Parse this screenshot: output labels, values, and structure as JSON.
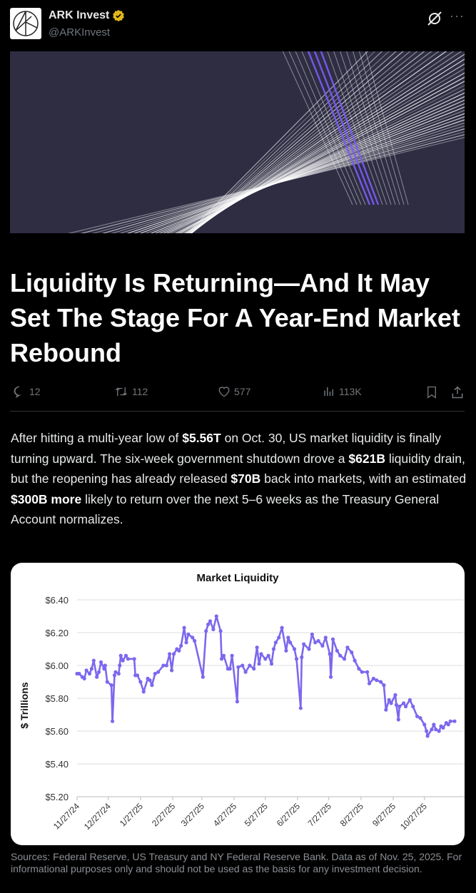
{
  "post": {
    "author": "ARK Invest",
    "handle": "@ARKInvest",
    "verified": true,
    "verified_color": "#e2b719"
  },
  "banner": {
    "background": "#2e2d42",
    "accent": "#7b5cf5"
  },
  "article": {
    "title": "Liquidity Is Returning—And It May Set The Stage For A Year-End Market Rebound",
    "body": [
      {
        "t": "After hitting a multi-year low of "
      },
      {
        "t": "$5.56T",
        "b": true
      },
      {
        "t": " on Oct. 30, US market liquidity is finally turning upward. The six-week government shutdown drove a "
      },
      {
        "t": "$621B",
        "b": true
      },
      {
        "t": " liquidity drain, but the reopening has already released "
      },
      {
        "t": "$70B",
        "b": true
      },
      {
        "t": " back into markets, with an estimated "
      },
      {
        "t": "$300B more",
        "b": true
      },
      {
        "t": " likely to return over the next 5–6 weeks as the Treasury General Account normalizes."
      }
    ]
  },
  "metrics": {
    "replies": "12",
    "reposts": "112",
    "likes": "577",
    "views": "113K"
  },
  "footer": "Sources: Federal Reserve, US Treasury and NY Federal Reserve Bank. Data as of Nov. 25, 2025. For informational purposes only and should not be used as the basis for any investment decision.",
  "chart_data": {
    "type": "line",
    "title": "Market Liquidity",
    "ylabel": "$ Trillions",
    "xlabel": "",
    "ylim": [
      5.2,
      6.4
    ],
    "yticks": [
      "$5.20",
      "$5.40",
      "$5.60",
      "$5.80",
      "$6.00",
      "$6.20",
      "$6.40"
    ],
    "xticks": [
      "11/27/24",
      "12/27/24",
      "1/27/25",
      "2/27/25",
      "3/27/25",
      "4/27/25",
      "5/27/25",
      "6/27/25",
      "7/27/25",
      "8/27/25",
      "9/27/25",
      "10/27/25"
    ],
    "grid": true,
    "line_color": "#7b68ee",
    "points": [
      [
        "2024-11-27",
        5.95
      ],
      [
        "2024-11-29",
        5.95
      ],
      [
        "2024-12-02",
        5.93
      ],
      [
        "2024-12-04",
        5.92
      ],
      [
        "2024-12-06",
        5.97
      ],
      [
        "2024-12-09",
        5.95
      ],
      [
        "2024-12-11",
        5.98
      ],
      [
        "2024-12-13",
        6.03
      ],
      [
        "2024-12-16",
        5.93
      ],
      [
        "2024-12-18",
        5.96
      ],
      [
        "2024-12-20",
        6.02
      ],
      [
        "2024-12-23",
        5.98
      ],
      [
        "2024-12-24",
        6.0
      ],
      [
        "2024-12-26",
        5.9
      ],
      [
        "2024-12-30",
        5.88
      ],
      [
        "2024-12-31",
        5.66
      ],
      [
        "2025-01-02",
        5.94
      ],
      [
        "2025-01-03",
        5.96
      ],
      [
        "2025-01-06",
        5.95
      ],
      [
        "2025-01-07",
        6.0
      ],
      [
        "2025-01-08",
        6.06
      ],
      [
        "2025-01-10",
        6.03
      ],
      [
        "2025-01-13",
        6.06
      ],
      [
        "2025-01-15",
        6.04
      ],
      [
        "2025-01-21",
        6.04
      ],
      [
        "2025-01-22",
        5.94
      ],
      [
        "2025-01-24",
        5.94
      ],
      [
        "2025-01-27",
        5.9
      ],
      [
        "2025-01-30",
        5.84
      ],
      [
        "2025-02-03",
        5.92
      ],
      [
        "2025-02-05",
        5.91
      ],
      [
        "2025-02-07",
        5.88
      ],
      [
        "2025-02-10",
        5.95
      ],
      [
        "2025-02-13",
        5.96
      ],
      [
        "2025-02-18",
        6.0
      ],
      [
        "2025-02-21",
        6.0
      ],
      [
        "2025-02-24",
        6.07
      ],
      [
        "2025-02-26",
        5.97
      ],
      [
        "2025-02-28",
        6.07
      ],
      [
        "2025-03-03",
        6.1
      ],
      [
        "2025-03-05",
        6.09
      ],
      [
        "2025-03-07",
        6.12
      ],
      [
        "2025-03-10",
        6.23
      ],
      [
        "2025-03-12",
        6.14
      ],
      [
        "2025-03-14",
        6.19
      ],
      [
        "2025-03-18",
        6.17
      ],
      [
        "2025-03-20",
        6.15
      ],
      [
        "2025-03-28",
        5.93
      ],
      [
        "2025-03-31",
        6.21
      ],
      [
        "2025-04-02",
        6.25
      ],
      [
        "2025-04-04",
        6.27
      ],
      [
        "2025-04-07",
        6.22
      ],
      [
        "2025-04-10",
        6.3
      ],
      [
        "2025-04-14",
        6.21
      ],
      [
        "2025-04-15",
        6.04
      ],
      [
        "2025-04-17",
        6.06
      ],
      [
        "2025-04-21",
        5.98
      ],
      [
        "2025-04-23",
        5.98
      ],
      [
        "2025-04-25",
        6.06
      ],
      [
        "2025-04-30",
        5.78
      ],
      [
        "2025-05-01",
        5.99
      ],
      [
        "2025-05-05",
        6.0
      ],
      [
        "2025-05-08",
        5.96
      ],
      [
        "2025-05-12",
        6.0
      ],
      [
        "2025-05-16",
        5.98
      ],
      [
        "2025-05-19",
        6.11
      ],
      [
        "2025-05-21",
        6.01
      ],
      [
        "2025-05-23",
        6.07
      ],
      [
        "2025-05-27",
        6.04
      ],
      [
        "2025-05-30",
        6.06
      ],
      [
        "2025-06-02",
        6.01
      ],
      [
        "2025-06-04",
        6.1
      ],
      [
        "2025-06-06",
        6.14
      ],
      [
        "2025-06-09",
        6.17
      ],
      [
        "2025-06-12",
        6.23
      ],
      [
        "2025-06-16",
        6.09
      ],
      [
        "2025-06-18",
        6.17
      ],
      [
        "2025-06-20",
        6.14
      ],
      [
        "2025-06-24",
        6.1
      ],
      [
        "2025-06-26",
        6.04
      ],
      [
        "2025-06-30",
        5.74
      ],
      [
        "2025-07-01",
        6.05
      ],
      [
        "2025-07-03",
        6.13
      ],
      [
        "2025-07-08",
        6.1
      ],
      [
        "2025-07-11",
        6.19
      ],
      [
        "2025-07-14",
        6.14
      ],
      [
        "2025-07-17",
        6.15
      ],
      [
        "2025-07-21",
        6.12
      ],
      [
        "2025-07-24",
        6.17
      ],
      [
        "2025-07-28",
        6.07
      ],
      [
        "2025-07-29",
        5.93
      ],
      [
        "2025-07-31",
        6.16
      ],
      [
        "2025-08-04",
        6.09
      ],
      [
        "2025-08-07",
        6.06
      ],
      [
        "2025-08-11",
        6.04
      ],
      [
        "2025-08-14",
        6.11
      ],
      [
        "2025-08-18",
        6.08
      ],
      [
        "2025-08-21",
        6.03
      ],
      [
        "2025-08-25",
        5.98
      ],
      [
        "2025-08-28",
        5.96
      ],
      [
        "2025-09-02",
        5.96
      ],
      [
        "2025-09-04",
        5.89
      ],
      [
        "2025-09-08",
        5.92
      ],
      [
        "2025-09-11",
        5.91
      ],
      [
        "2025-09-15",
        5.9
      ],
      [
        "2025-09-18",
        5.88
      ],
      [
        "2025-09-20",
        5.73
      ],
      [
        "2025-09-23",
        5.79
      ],
      [
        "2025-09-25",
        5.77
      ],
      [
        "2025-09-29",
        5.82
      ],
      [
        "2025-09-30",
        5.76
      ],
      [
        "2025-10-02",
        5.67
      ],
      [
        "2025-10-03",
        5.75
      ],
      [
        "2025-10-07",
        5.77
      ],
      [
        "2025-10-09",
        5.75
      ],
      [
        "2025-10-13",
        5.79
      ],
      [
        "2025-10-16",
        5.75
      ],
      [
        "2025-10-20",
        5.69
      ],
      [
        "2025-10-23",
        5.68
      ],
      [
        "2025-10-27",
        5.64
      ],
      [
        "2025-10-29",
        5.6
      ],
      [
        "2025-10-30",
        5.57
      ],
      [
        "2025-11-03",
        5.61
      ],
      [
        "2025-11-05",
        5.64
      ],
      [
        "2025-11-07",
        5.61
      ],
      [
        "2025-11-10",
        5.6
      ],
      [
        "2025-11-12",
        5.63
      ],
      [
        "2025-11-14",
        5.62
      ],
      [
        "2025-11-17",
        5.65
      ],
      [
        "2025-11-19",
        5.64
      ],
      [
        "2025-11-21",
        5.66
      ],
      [
        "2025-11-25",
        5.66
      ]
    ]
  }
}
